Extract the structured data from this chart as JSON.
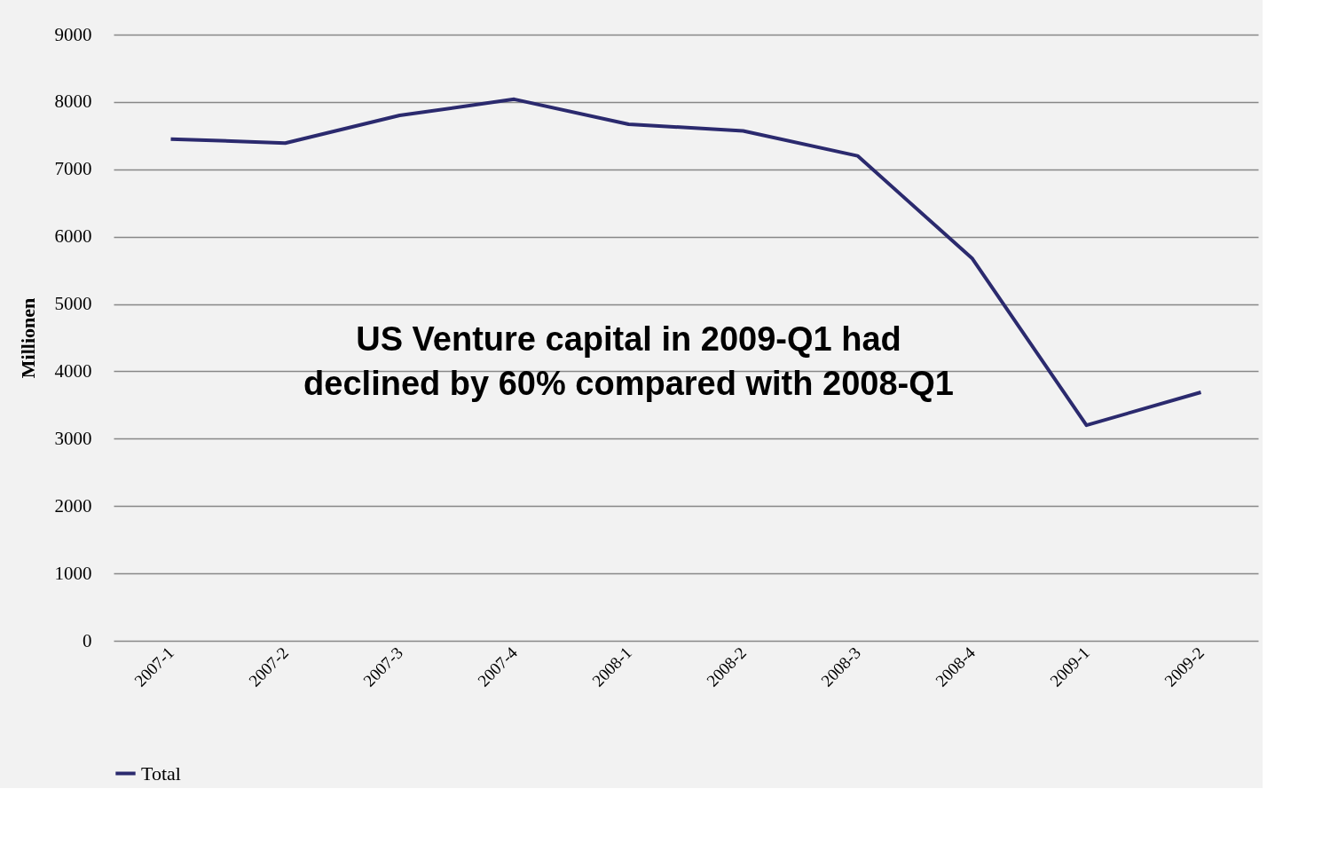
{
  "chart_data": {
    "type": "line",
    "ylabel": "Millionen",
    "categories": [
      "2007-1",
      "2007-2",
      "2007-3",
      "2007-4",
      "2008-1",
      "2008-2",
      "2008-3",
      "2008-4",
      "2009-1",
      "2009-2"
    ],
    "series": [
      {
        "name": "Total",
        "color": "#2b2a6e",
        "values": [
          7450,
          7390,
          7800,
          8040,
          7670,
          7570,
          7200,
          5680,
          3200,
          3690
        ]
      }
    ],
    "ylim": [
      0,
      9000
    ],
    "yticks": [
      0,
      1000,
      2000,
      3000,
      4000,
      5000,
      6000,
      7000,
      8000,
      9000
    ],
    "grid": "y",
    "legend": "bottom",
    "marker": "none",
    "line_style": "solid",
    "annotations": [
      "US Venture capital in 2009-Q1 had\ndeclined by 60% compared with 2008-Q1"
    ]
  }
}
